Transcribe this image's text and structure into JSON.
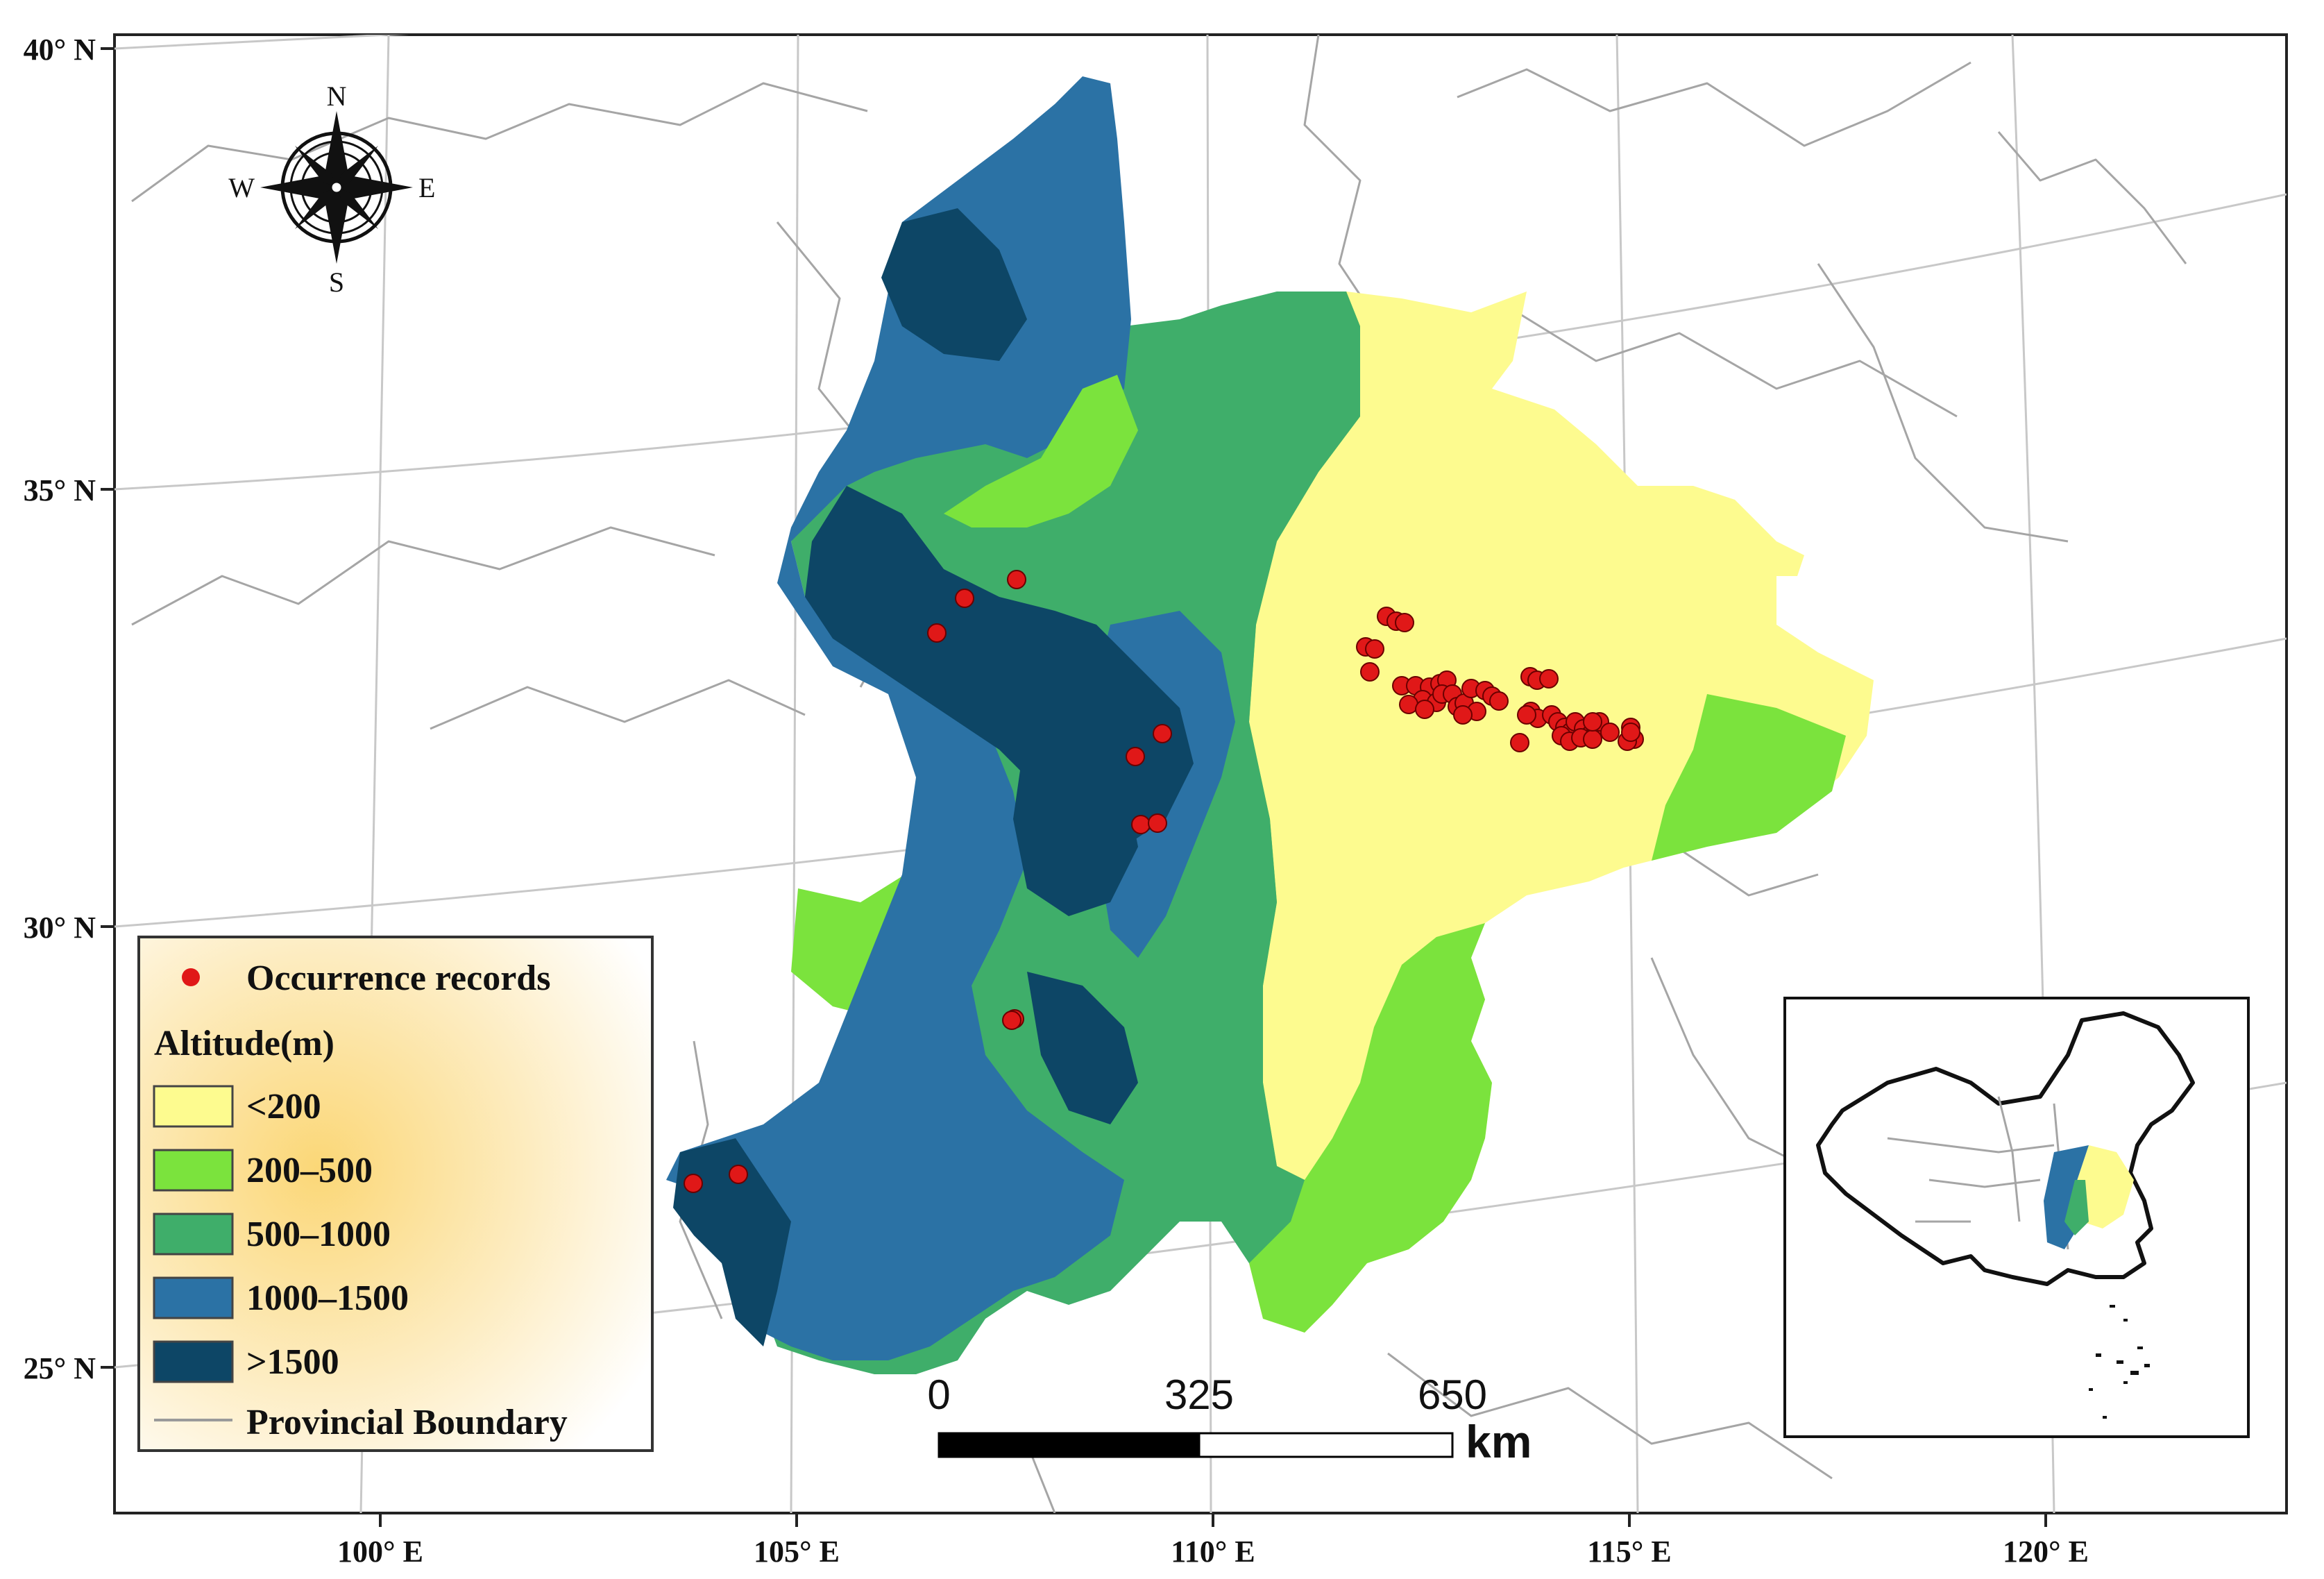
{
  "map": {
    "lat_labels": [
      "40° N",
      "35° N",
      "30° N",
      "25° N"
    ],
    "lon_labels": [
      "100° E",
      "105° E",
      "110° E",
      "115° E",
      "120° E"
    ]
  },
  "compass": {
    "n": "N",
    "s": "S",
    "e": "E",
    "w": "W"
  },
  "legend": {
    "occurrence_label": "Occurrence records",
    "altitude_title": "Altitude(m)",
    "classes": [
      {
        "label": "<200",
        "color": "#fdfb8f"
      },
      {
        "label": "200–500",
        "color": "#7be33d"
      },
      {
        "label": "500–1000",
        "color": "#3fae6a"
      },
      {
        "label": "1000–1500",
        "color": "#2b72a5"
      },
      {
        "label": ">1500",
        "color": "#0d4666"
      }
    ],
    "boundary_label": "Provincial Boundary",
    "occurrence_color": "#e01818",
    "boundary_color": "#9a9a9a"
  },
  "scalebar": {
    "labels": [
      "0",
      "325",
      "650"
    ],
    "unit": "km"
  }
}
